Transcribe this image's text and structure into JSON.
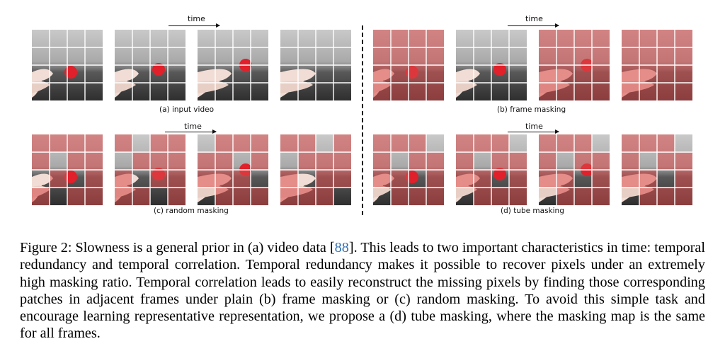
{
  "figure": {
    "time_label": "time",
    "panels": [
      {
        "id": "a",
        "caption": "(a) input video",
        "masking": "none"
      },
      {
        "id": "b",
        "caption": "(b) frame masking",
        "masking": "frame"
      },
      {
        "id": "c",
        "caption": "(c) random masking",
        "masking": "random"
      },
      {
        "id": "d",
        "caption": "(d) tube masking",
        "masking": "tube"
      }
    ],
    "frames_per_panel": 4
  },
  "caption": {
    "part1": "Figure 2: Slowness is a general prior in (a) video data [",
    "ref": "88",
    "part2": "]. This leads to two important characteristics in time: temporal redundancy and temporal correlation. Temporal redundancy makes it possible to recover pixels under an extremely high masking ratio. Temporal correlation leads to easily reconstruct the missing pixels by finding those corresponding patches in adjacent frames under plain (b) frame masking or (c) random masking. To avoid this simple task and encourage learning representative representation, we propose a (d) tube masking, where the masking map is the same for all frames."
  },
  "colors": {
    "mask_red": "#d94a4a",
    "ball_red": "#e0202a",
    "caption_ref": "#2f6fb5"
  }
}
